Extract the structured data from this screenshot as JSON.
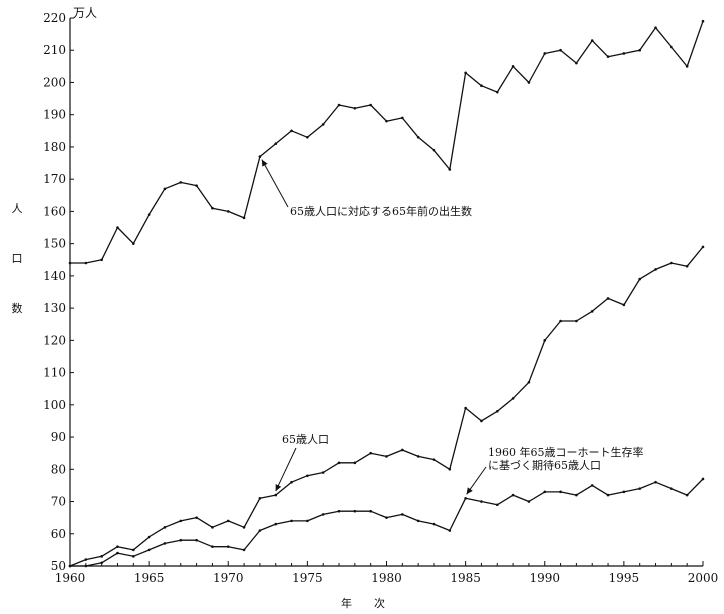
{
  "chart_data": {
    "type": "line",
    "title": "",
    "xlabel": "年　　次",
    "ylabel": "人口数",
    "ylabel_chars": [
      "人",
      "口",
      "数"
    ],
    "y_unit": "万人",
    "xlim": [
      1960,
      2000
    ],
    "ylim": [
      50,
      220
    ],
    "x_ticks": [
      1960,
      1965,
      1970,
      1975,
      1980,
      1985,
      1990,
      1995,
      2000
    ],
    "y_ticks": [
      50,
      60,
      70,
      80,
      90,
      100,
      110,
      120,
      130,
      140,
      150,
      160,
      170,
      180,
      190,
      200,
      210,
      220
    ],
    "grid": false,
    "color": "#111111",
    "series": [
      {
        "name": "65歳人口に対応する65年前の出生数",
        "x": [
          1960,
          1961,
          1962,
          1963,
          1964,
          1965,
          1966,
          1967,
          1968,
          1969,
          1970,
          1971,
          1972,
          1973,
          1974,
          1975,
          1976,
          1977,
          1978,
          1979,
          1980,
          1981,
          1982,
          1983,
          1984,
          1985,
          1986,
          1987,
          1988,
          1989,
          1990,
          1991,
          1992,
          1993,
          1994,
          1995,
          1996,
          1997,
          1998,
          1999,
          2000
        ],
        "values": [
          144,
          144,
          145,
          155,
          150,
          159,
          167,
          169,
          168,
          161,
          160,
          158,
          177,
          181,
          185,
          183,
          187,
          193,
          192,
          193,
          188,
          189,
          183,
          179,
          173,
          203,
          199,
          197,
          205,
          200,
          209,
          210,
          206,
          213,
          208,
          209,
          210,
          217,
          211,
          205,
          219
        ]
      },
      {
        "name": "65歳人口",
        "x": [
          1960,
          1961,
          1962,
          1963,
          1964,
          1965,
          1966,
          1967,
          1968,
          1969,
          1970,
          1971,
          1972,
          1973,
          1974,
          1975,
          1976,
          1977,
          1978,
          1979,
          1980,
          1981,
          1982,
          1983,
          1984,
          1985,
          1986,
          1987,
          1988,
          1989,
          1990,
          1991,
          1992,
          1993,
          1994,
          1995,
          1996,
          1997,
          1998,
          1999,
          2000
        ],
        "values": [
          50,
          52,
          53,
          56,
          55,
          59,
          62,
          64,
          65,
          62,
          64,
          62,
          71,
          72,
          76,
          78,
          79,
          82,
          82,
          85,
          84,
          86,
          84,
          83,
          80,
          99,
          95,
          98,
          102,
          107,
          120,
          126,
          126,
          129,
          133,
          131,
          139,
          142,
          144,
          143,
          149
        ]
      },
      {
        "name": "1960 年65歳コーホート生存率に基づく期待65歳人口",
        "x": [
          1960,
          1961,
          1962,
          1963,
          1964,
          1965,
          1966,
          1967,
          1968,
          1969,
          1970,
          1971,
          1972,
          1973,
          1974,
          1975,
          1976,
          1977,
          1978,
          1979,
          1980,
          1981,
          1982,
          1983,
          1984,
          1985,
          1986,
          1987,
          1988,
          1989,
          1990,
          1991,
          1992,
          1993,
          1994,
          1995,
          1996,
          1997,
          1998,
          1999,
          2000
        ],
        "values": [
          50,
          50,
          51,
          54,
          53,
          55,
          57,
          58,
          58,
          56,
          56,
          55,
          61,
          63,
          64,
          64,
          66,
          67,
          67,
          67,
          65,
          66,
          64,
          63,
          61,
          71,
          70,
          69,
          72,
          70,
          73,
          73,
          72,
          75,
          72,
          73,
          74,
          76,
          74,
          72,
          77
        ]
      }
    ],
    "annotations": [
      {
        "text": "65歳人口に対応する65年前の出生数",
        "series": 0,
        "x": 1972
      },
      {
        "text": "65歳人口",
        "series": 1,
        "x": 1973
      },
      {
        "text": "1960 年65歳コーホート生存率",
        "text2": "に基づく期待65歳人口",
        "series": 2,
        "x": 1985
      }
    ]
  }
}
